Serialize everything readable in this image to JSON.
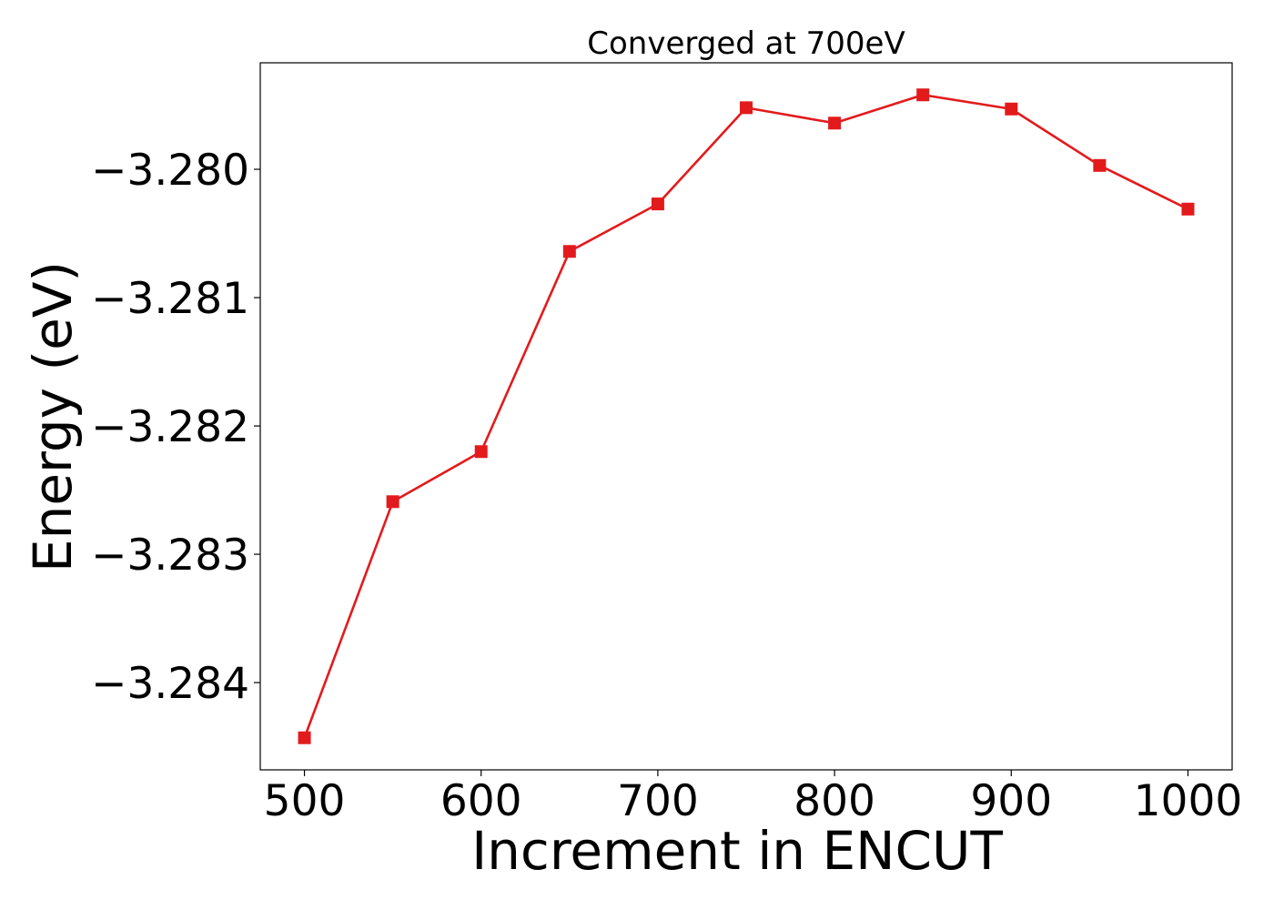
{
  "chart_data": {
    "type": "line",
    "title": "Converged at 700eV",
    "xlabel": "Increment in ENCUT",
    "ylabel": "Energy (eV)",
    "x": [
      500,
      550,
      600,
      650,
      700,
      750,
      800,
      850,
      900,
      950,
      1000
    ],
    "series": [
      {
        "values": [
          -3.28443,
          -3.28259,
          -3.2822,
          -3.28064,
          -3.28027,
          -3.27952,
          -3.27964,
          -3.27942,
          -3.27953,
          -3.27997,
          -3.28031
        ],
        "color": "#e31a1c",
        "marker": "square"
      }
    ],
    "xlim": [
      475,
      1025
    ],
    "ylim": [
      -3.28468,
      -3.27917
    ],
    "xticks": [
      500,
      600,
      700,
      800,
      900,
      1000
    ],
    "xtick_labels": [
      "500",
      "600",
      "700",
      "800",
      "900",
      "1000"
    ],
    "yticks": [
      -3.28,
      -3.281,
      -3.282,
      -3.283,
      -3.284
    ],
    "ytick_labels": [
      "−3.280",
      "−3.281",
      "−3.282",
      "−3.283",
      "−3.284"
    ],
    "grid": false,
    "legend": false
  }
}
